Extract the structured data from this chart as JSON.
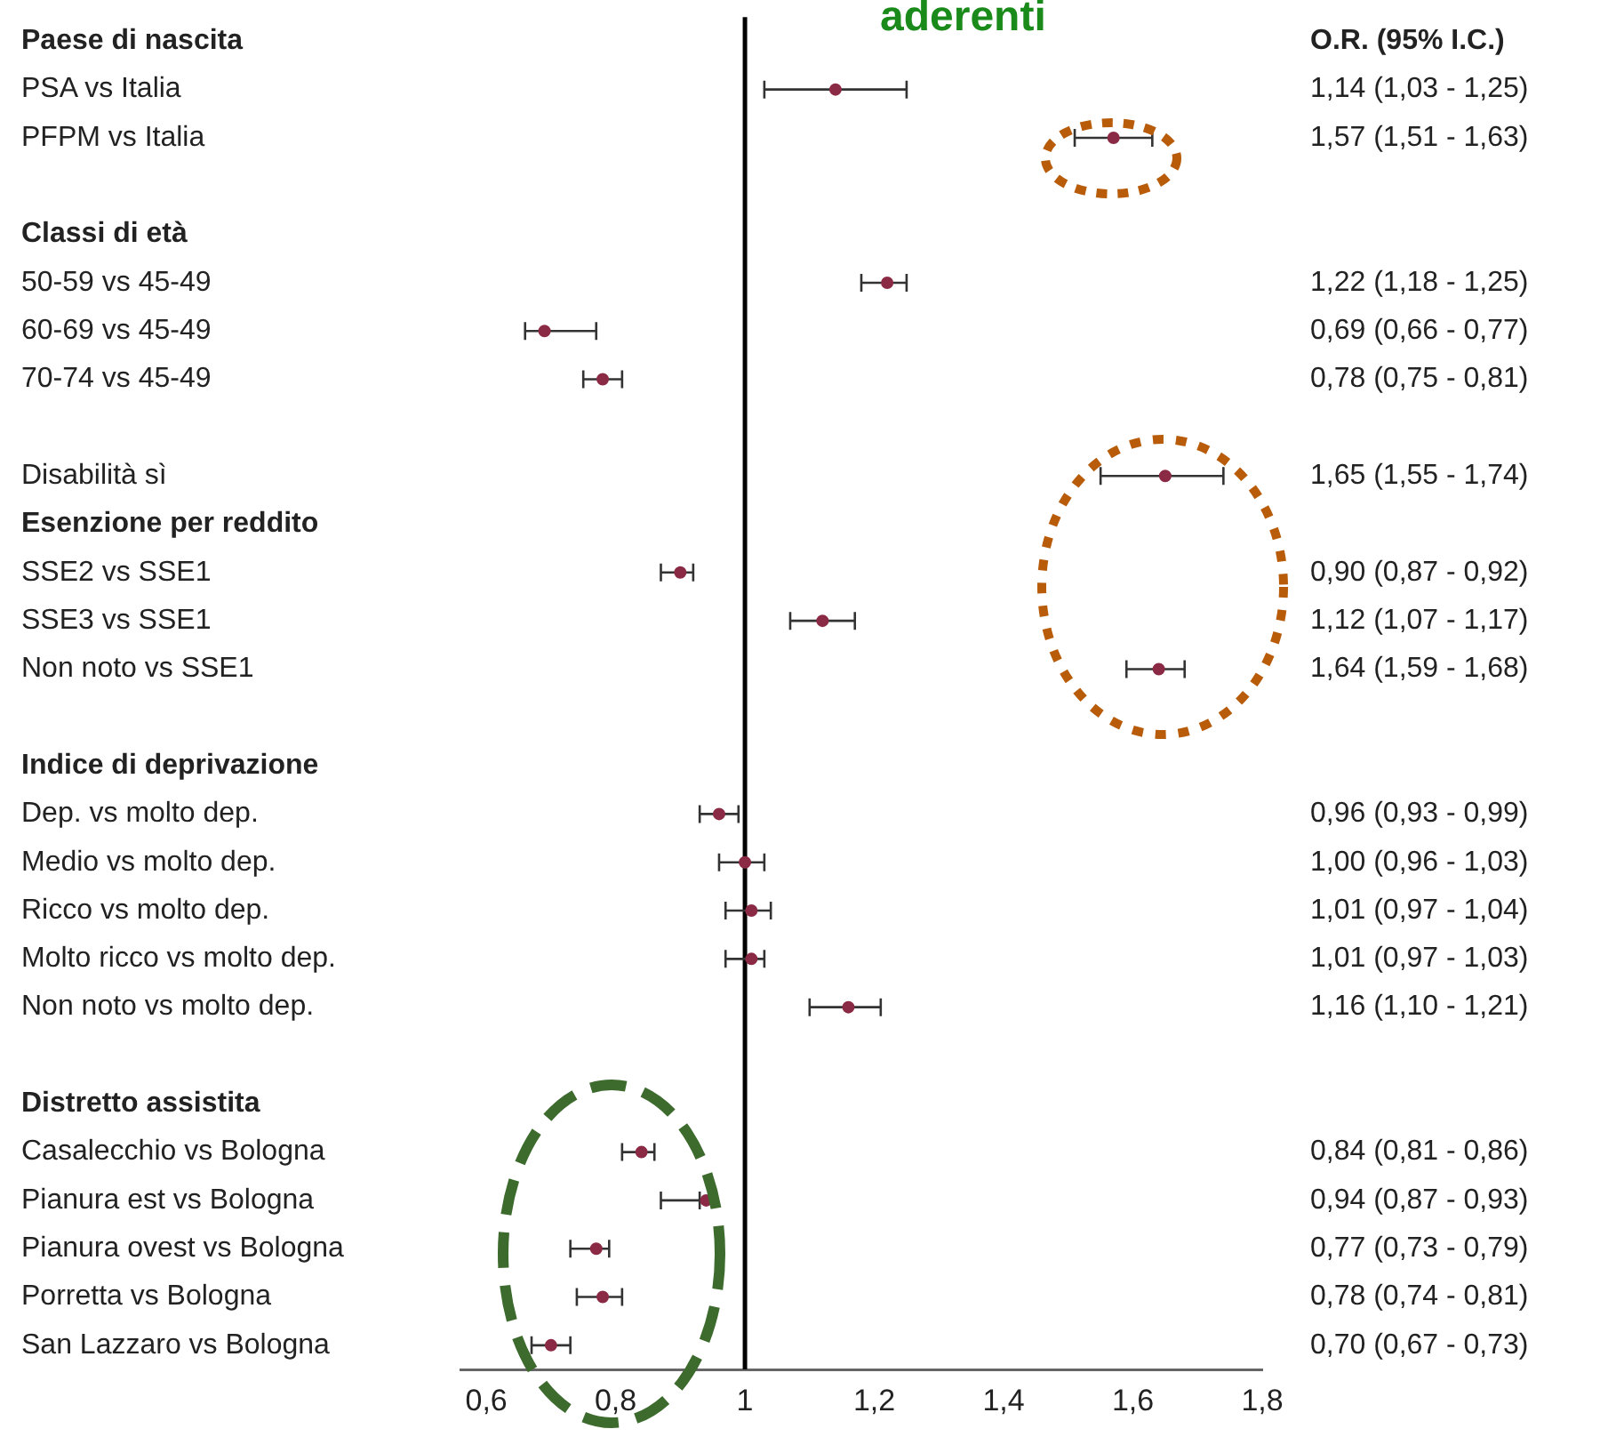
{
  "chart_data": {
    "type": "scatter",
    "orientation": "horizontal",
    "title": "aderenti",
    "marker": "circle",
    "color": "#8b2a45",
    "categories": [
      "Paese di nascita",
      "PSA vs Italia",
      "PFPM vs Italia",
      null,
      "Classi di età",
      "50-59 vs 45-49",
      "60-69 vs 45-49",
      "70-74 vs 45-49",
      null,
      "Disabilità sì",
      "Esenzione per reddito",
      "SSE2 vs SSE1",
      "SSE3 vs SSE1",
      "Non noto vs SSE1",
      null,
      "Indice di deprivazione",
      "Dep. vs molto dep.",
      "Medio vs molto dep.",
      "Ricco vs molto dep.",
      "Molto ricco vs molto dep.",
      "Non noto vs molto dep.",
      null,
      "Distretto assistita",
      "Casalecchio vs Bologna",
      "Pianura est vs Bologna",
      "Pianura ovest vs Bologna",
      "Porretta vs Bologna",
      "San Lazzaro vs Bologna"
    ],
    "values": [
      null,
      1.14,
      1.57,
      null,
      null,
      1.22,
      0.69,
      0.78,
      null,
      1.65,
      null,
      0.9,
      1.12,
      1.64,
      null,
      null,
      0.96,
      1.0,
      1.01,
      1.01,
      1.16,
      null,
      null,
      0.84,
      0.94,
      0.77,
      0.78,
      0.7
    ],
    "errors": [
      null,
      [
        1.03,
        1.25
      ],
      [
        1.51,
        1.63
      ],
      null,
      null,
      [
        1.18,
        1.25
      ],
      [
        0.66,
        0.77
      ],
      [
        0.75,
        0.81
      ],
      null,
      [
        1.55,
        1.74
      ],
      null,
      [
        0.87,
        0.92
      ],
      [
        1.07,
        1.17
      ],
      [
        1.59,
        1.68
      ],
      null,
      null,
      [
        0.93,
        0.99
      ],
      [
        0.96,
        1.03
      ],
      [
        0.97,
        1.04
      ],
      [
        0.97,
        1.03
      ],
      [
        1.1,
        1.21
      ],
      null,
      null,
      [
        0.81,
        0.86
      ],
      [
        0.87,
        0.93
      ],
      [
        0.73,
        0.79
      ],
      [
        0.74,
        0.81
      ],
      [
        0.67,
        0.73
      ]
    ],
    "value_labels": [
      null,
      "1,14 (1,03 - 1,25)",
      "1,57 (1,51 - 1,63)",
      null,
      null,
      "1,22 (1,18 - 1,25)",
      "0,69 (0,66 - 0,77)",
      "0,78 (0,75 - 0,81)",
      null,
      "1,65 (1,55 - 1,74)",
      null,
      "0,90 (0,87 - 0,92)",
      "1,12 (1,07 - 1,17)",
      "1,64 (1,59 - 1,68)",
      null,
      null,
      "0,96 (0,93 - 0,99)",
      "1,00 (0,96 - 1,03)",
      "1,01 (0,97 - 1,04)",
      "1,01 (0,97 - 1,03)",
      "1,16 (1,10 - 1,21)",
      null,
      null,
      "0,84 (0,81 - 0,86)",
      "0,94 (0,87 - 0,93)",
      "0,77 (0,73 - 0,79)",
      "0,78 (0,74 - 0,81)",
      "0,70 (0,67 - 0,73)"
    ],
    "xlim": [
      0.56,
      1.8
    ],
    "xticks": [
      {
        "value": 0.6,
        "label": "0,6"
      },
      {
        "value": 0.8,
        "label": "0,8"
      },
      1,
      {
        "value": 1.2,
        "label": "1,2"
      },
      {
        "value": 1.4,
        "label": "1,4"
      },
      {
        "value": 1.6,
        "label": "1,6"
      },
      {
        "value": 1.8,
        "label": "1,8"
      }
    ],
    "ref_lines": [
      {
        "axis": "x",
        "value": 1,
        "color": "#000000"
      }
    ],
    "annotations": [
      "O.R. (95% I.C.)"
    ]
  }
}
